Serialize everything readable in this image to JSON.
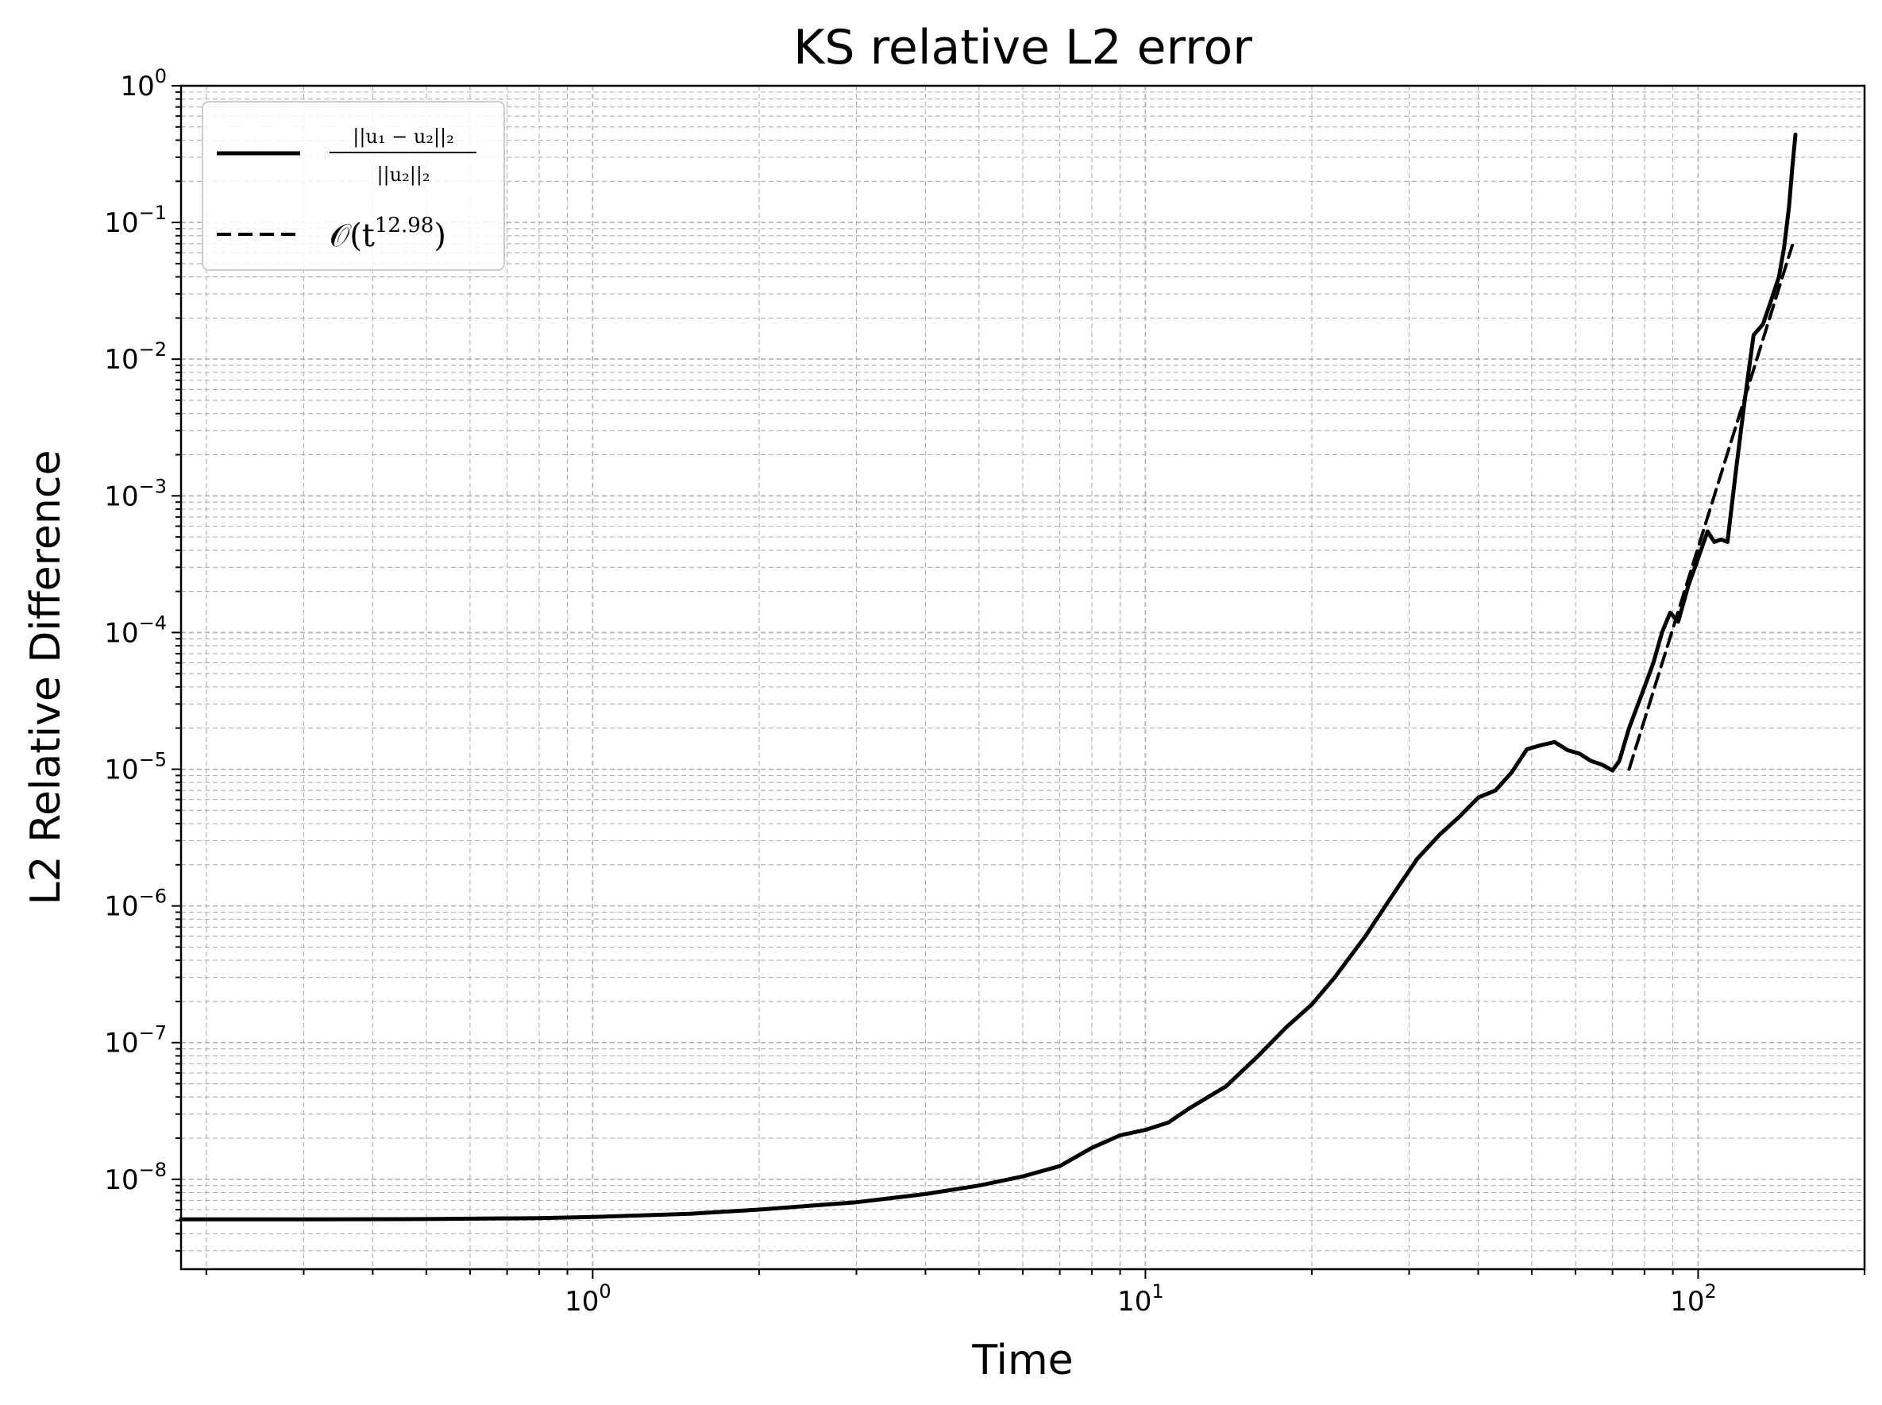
{
  "chart_data": {
    "type": "line",
    "title": "KS relative L2 error",
    "xlabel": "Time",
    "ylabel": "L2 Relative Difference",
    "xscale": "log",
    "yscale": "log",
    "xlim": [
      0.18,
      200
    ],
    "ylim": [
      2.2e-09,
      1.0
    ],
    "grid": "both (major and minor, dashed)",
    "legend_position": "upper-left",
    "x_ticks": [
      {
        "base": "10",
        "exp": "0",
        "value": 1
      },
      {
        "base": "10",
        "exp": "1",
        "value": 10
      },
      {
        "base": "10",
        "exp": "2",
        "value": 100
      }
    ],
    "y_ticks": [
      {
        "base": "10",
        "exp": "0",
        "value": 1
      },
      {
        "base": "10",
        "exp": "−1",
        "value": 0.1
      },
      {
        "base": "10",
        "exp": "−2",
        "value": 0.01
      },
      {
        "base": "10",
        "exp": "−3",
        "value": 0.001
      },
      {
        "base": "10",
        "exp": "−4",
        "value": 0.0001
      },
      {
        "base": "10",
        "exp": "−5",
        "value": 1e-05
      },
      {
        "base": "10",
        "exp": "−6",
        "value": 1e-06
      },
      {
        "base": "10",
        "exp": "−7",
        "value": 1e-07
      },
      {
        "base": "10",
        "exp": "−8",
        "value": 1e-08
      }
    ],
    "series": [
      {
        "legend_label_top": "||u₁ − u₂||₂",
        "legend_label_bottom": "||u₂||₂",
        "style": "solid",
        "color": "#000000",
        "points": [
          [
            0.18,
            5.1e-09
          ],
          [
            0.3,
            5.1e-09
          ],
          [
            0.5,
            5.12e-09
          ],
          [
            0.8,
            5.2e-09
          ],
          [
            1.0,
            5.3e-09
          ],
          [
            1.5,
            5.6e-09
          ],
          [
            2.0,
            6e-09
          ],
          [
            3.0,
            6.8e-09
          ],
          [
            4.0,
            7.8e-09
          ],
          [
            5.0,
            9e-09
          ],
          [
            6.0,
            1.05e-08
          ],
          [
            7.0,
            1.25e-08
          ],
          [
            8.0,
            1.7e-08
          ],
          [
            9.0,
            2.1e-08
          ],
          [
            10.0,
            2.3e-08
          ],
          [
            11.0,
            2.6e-08
          ],
          [
            12.0,
            3.3e-08
          ],
          [
            14.0,
            4.8e-08
          ],
          [
            16.0,
            8e-08
          ],
          [
            18.0,
            1.3e-07
          ],
          [
            20.0,
            1.9e-07
          ],
          [
            22.0,
            3e-07
          ],
          [
            25.0,
            6e-07
          ],
          [
            28.0,
            1.2e-06
          ],
          [
            31.0,
            2.2e-06
          ],
          [
            34.0,
            3.3e-06
          ],
          [
            37.0,
            4.5e-06
          ],
          [
            40.0,
            6.2e-06
          ],
          [
            43.0,
            7e-06
          ],
          [
            46.0,
            9.5e-06
          ],
          [
            49.0,
            1.4e-05
          ],
          [
            52.0,
            1.5e-05
          ],
          [
            55.0,
            1.58e-05
          ],
          [
            58.0,
            1.38e-05
          ],
          [
            61.0,
            1.3e-05
          ],
          [
            64.0,
            1.15e-05
          ],
          [
            67.0,
            1.08e-05
          ],
          [
            70.0,
            9.8e-06
          ],
          [
            72.0,
            1.15e-05
          ],
          [
            75.0,
            2e-05
          ],
          [
            79.0,
            3.5e-05
          ],
          [
            83.0,
            6e-05
          ],
          [
            86.0,
            0.0001
          ],
          [
            89.0,
            0.00014
          ],
          [
            92.0,
            0.00012
          ],
          [
            96.0,
            0.00022
          ],
          [
            100.0,
            0.00035
          ],
          [
            104.0,
            0.00055
          ],
          [
            107.0,
            0.00046
          ],
          [
            110.0,
            0.00048
          ],
          [
            113.0,
            0.00046
          ],
          [
            117.0,
            0.0015
          ],
          [
            121.0,
            0.0045
          ],
          [
            126.0,
            0.015
          ],
          [
            131.0,
            0.018
          ],
          [
            136.0,
            0.028
          ],
          [
            140.0,
            0.04
          ],
          [
            143.0,
            0.065
          ],
          [
            146.0,
            0.13
          ],
          [
            148.0,
            0.25
          ],
          [
            150.0,
            0.44
          ]
        ]
      },
      {
        "legend_label": "𝒪(t",
        "legend_exponent": "12.98",
        "style": "dashed",
        "color": "#000000",
        "exponent": 12.98,
        "points": [
          [
            75.0,
            1e-05
          ],
          [
            148.0,
            0.068
          ]
        ]
      }
    ]
  }
}
